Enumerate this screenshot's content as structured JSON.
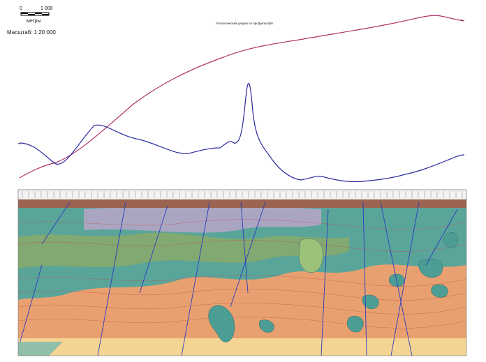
{
  "scale": {
    "start": "0",
    "end": "1 000",
    "unit": "метры",
    "caption": "Масштаб: 1:20 000"
  },
  "header": {
    "title": "Геологический разрез по профилю 8р8"
  }
}
